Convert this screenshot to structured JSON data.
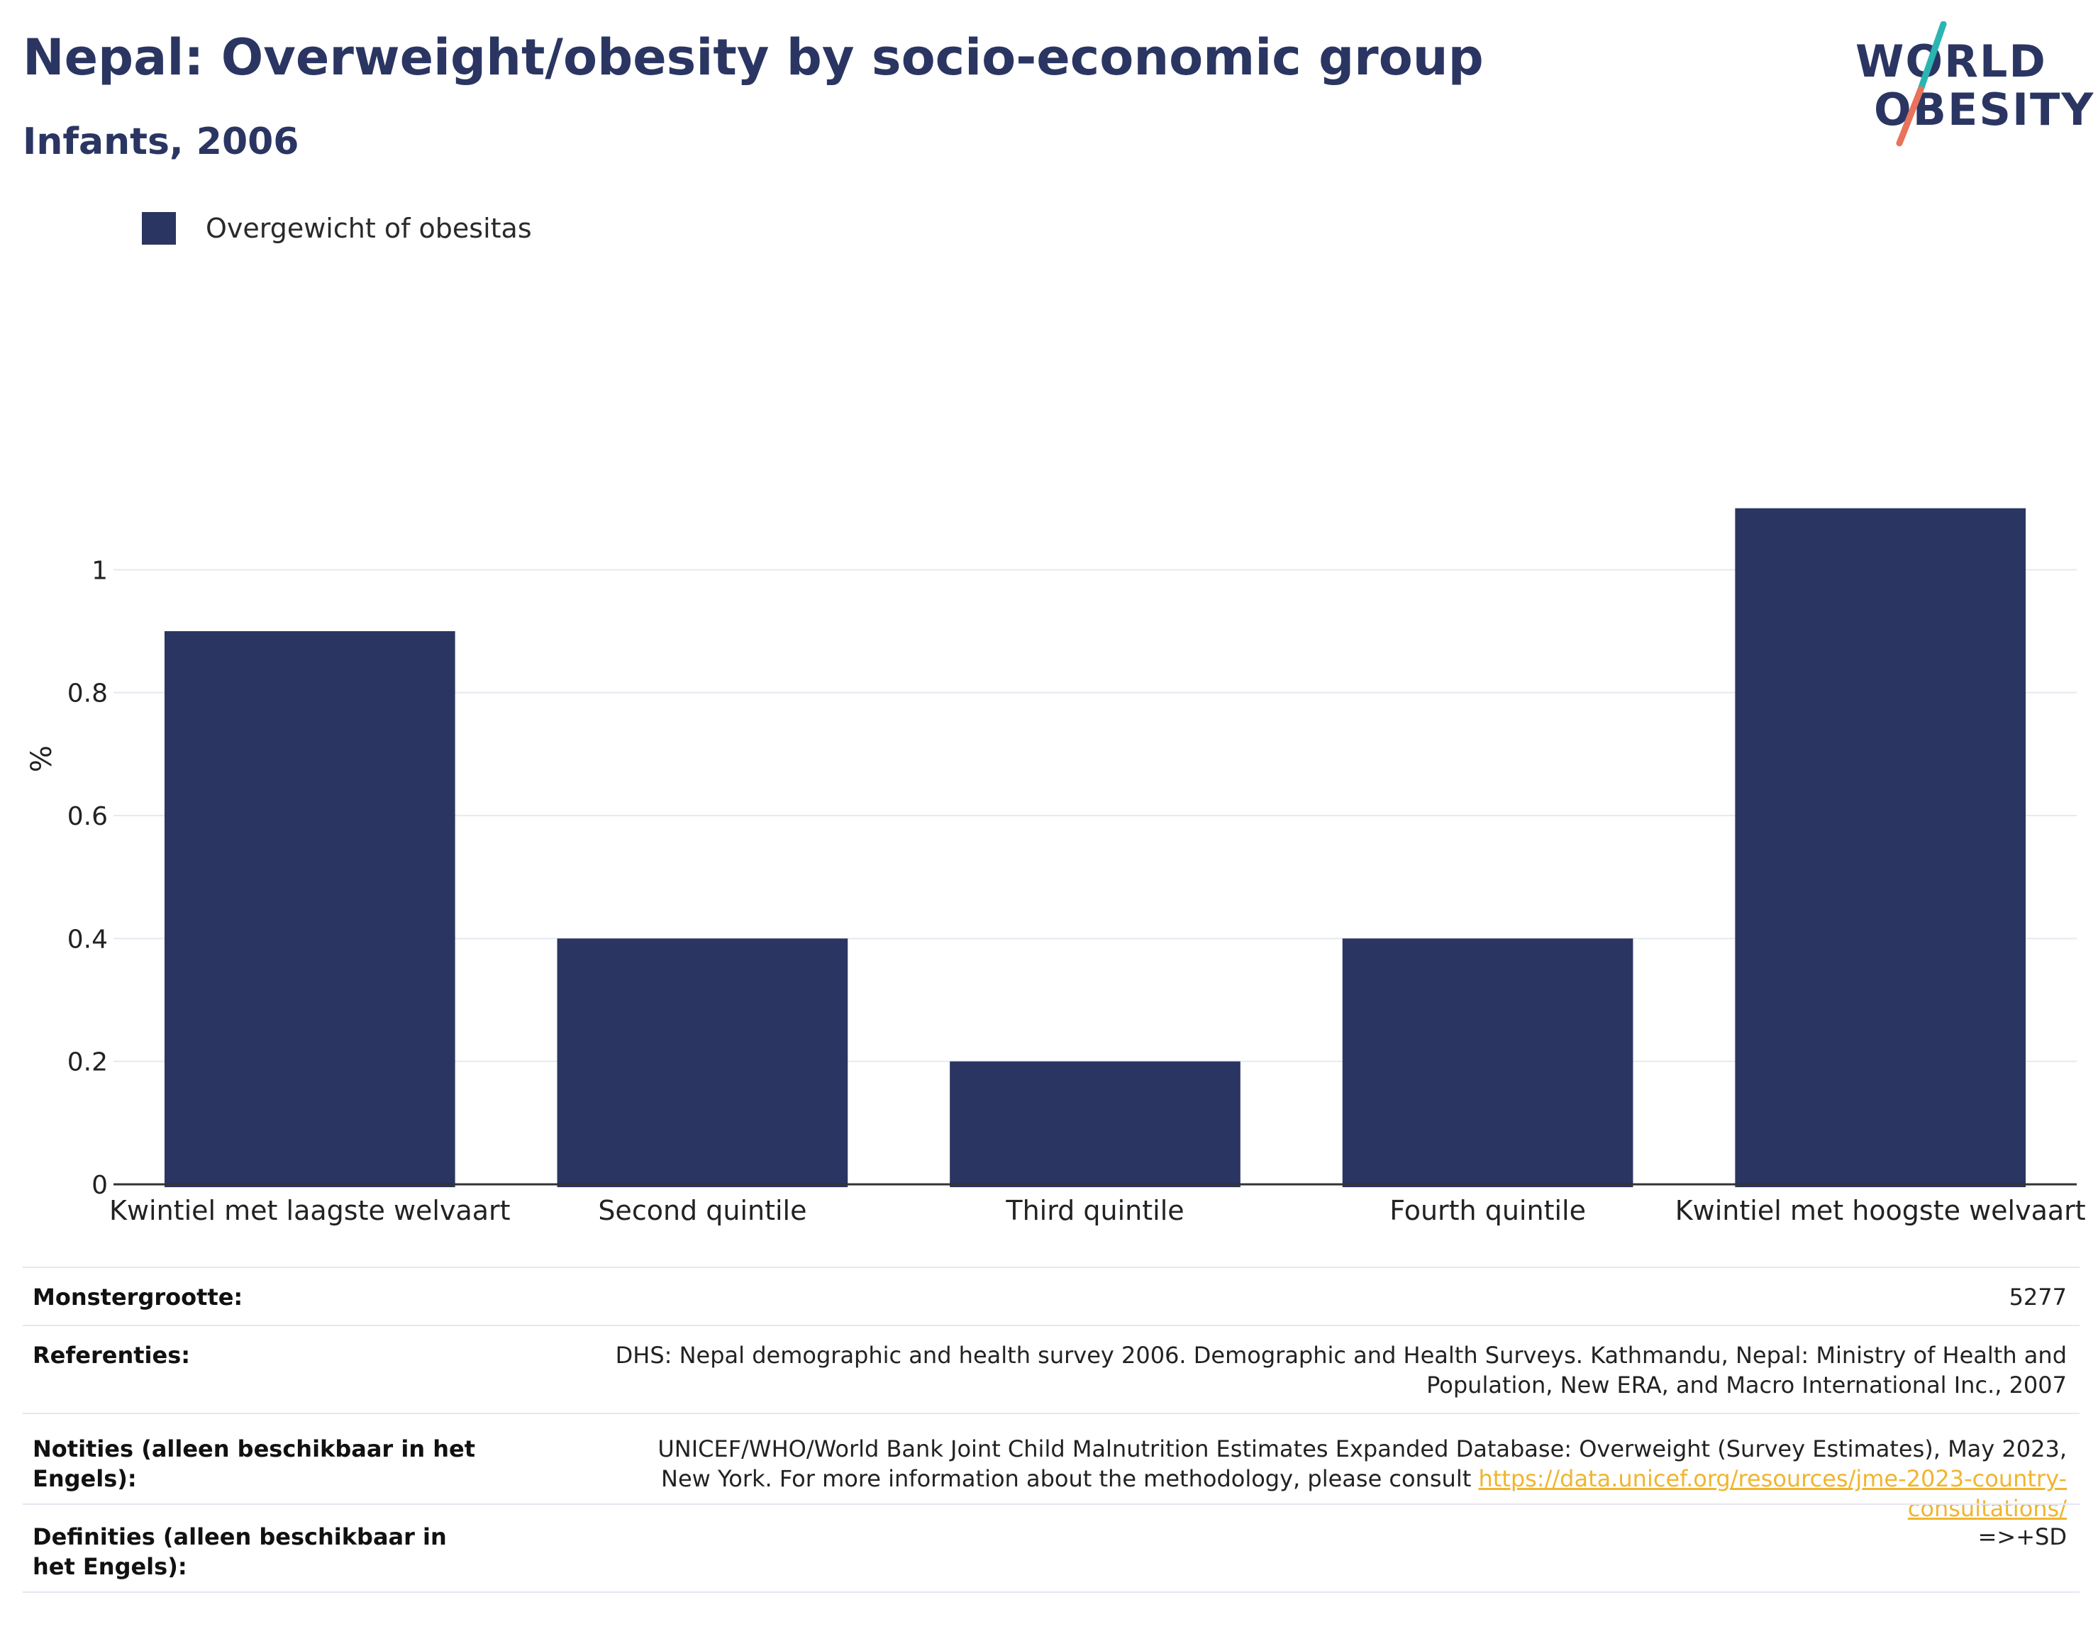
{
  "header": {
    "title": "Nepal: Overweight/obesity by socio-economic group",
    "subtitle": "Infants, 2006"
  },
  "logo": {
    "line1": "WORLD",
    "line2": "OBESITY",
    "colors": {
      "navy": "#2a3562",
      "teal": "#2bb5b0",
      "coral": "#e8735a"
    }
  },
  "legend": {
    "label": "Overgewicht of obesitas",
    "color": "#2a3562"
  },
  "chart_data": {
    "type": "bar",
    "categories": [
      "Kwintiel met laagste welvaart",
      "Second quintile",
      "Third quintile",
      "Fourth quintile",
      "Kwintiel met hoogste welvaart"
    ],
    "series": [
      {
        "name": "Overgewicht of obesitas",
        "values": [
          0.9,
          0.4,
          0.2,
          0.4,
          1.1
        ],
        "color": "#2a3562"
      }
    ],
    "ylabel": "%",
    "xlabel": "",
    "ylim": [
      0,
      1.2
    ],
    "yticks": [
      0,
      0.2,
      0.4,
      0.6,
      0.8,
      1
    ],
    "ytick_labels": [
      "0",
      "0.2",
      "0.4",
      "0.6",
      "0.8",
      "1"
    ],
    "grid": true,
    "legend_position": "top-left"
  },
  "info_table": [
    {
      "key": "Monstergrootte:",
      "value": "5277"
    },
    {
      "key": "Referenties:",
      "value": "DHS: Nepal demographic and health survey 2006. Demographic and Health Surveys. Kathmandu, Nepal: Ministry of Health and Population, New ERA, and Macro International Inc., 2007"
    },
    {
      "key": "Notities (alleen beschikbaar in het Engels):",
      "value": "UNICEF/WHO/World Bank Joint Child Malnutrition Estimates Expanded Database: Overweight (Survey Estimates), May 2023, New York. For more information about the methodology, please consult",
      "link": "https://data.unicef.org/resources/jme-2023-country-consultations/"
    },
    {
      "key": "Definities (alleen beschikbaar in het Engels):",
      "value": "=>+SD"
    }
  ]
}
